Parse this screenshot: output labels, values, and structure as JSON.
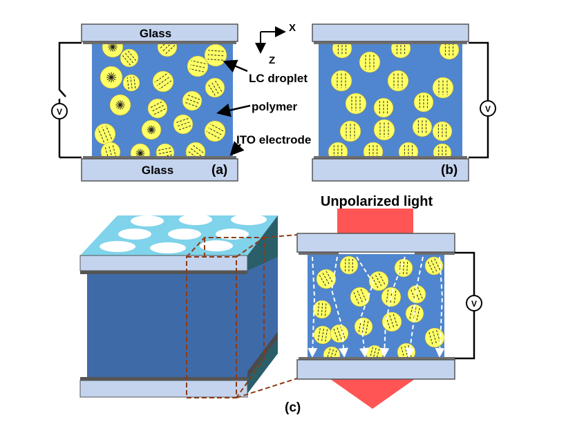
{
  "panel_a": {
    "top_plate_label": "Glass",
    "bottom_plate_label": "Glass",
    "voltmeter_label": "V",
    "panel_tag": "(a)",
    "callouts": {
      "droplet": "LC droplet",
      "polymer": "polymer",
      "electrode": "ITO electrode"
    }
  },
  "axes": {
    "x_label": "X",
    "z_label": "Z"
  },
  "panel_b": {
    "voltmeter_label": "V",
    "panel_tag": "(b)"
  },
  "panel_c": {
    "light_label": "Unpolarized light",
    "voltmeter_label": "V",
    "panel_tag": "(c)"
  },
  "colors": {
    "glass_fill": "#c4d4ee",
    "glass_edge": "#555555",
    "electrode": "#6e6e6e",
    "polymer": "#4f86cf",
    "polymer_dark": "#3f6aa8",
    "droplet": "#ffff66",
    "light_arrow": "#ff5555",
    "cube_top": "#7fd3ea",
    "dashed_outline": "#8b3a14"
  }
}
